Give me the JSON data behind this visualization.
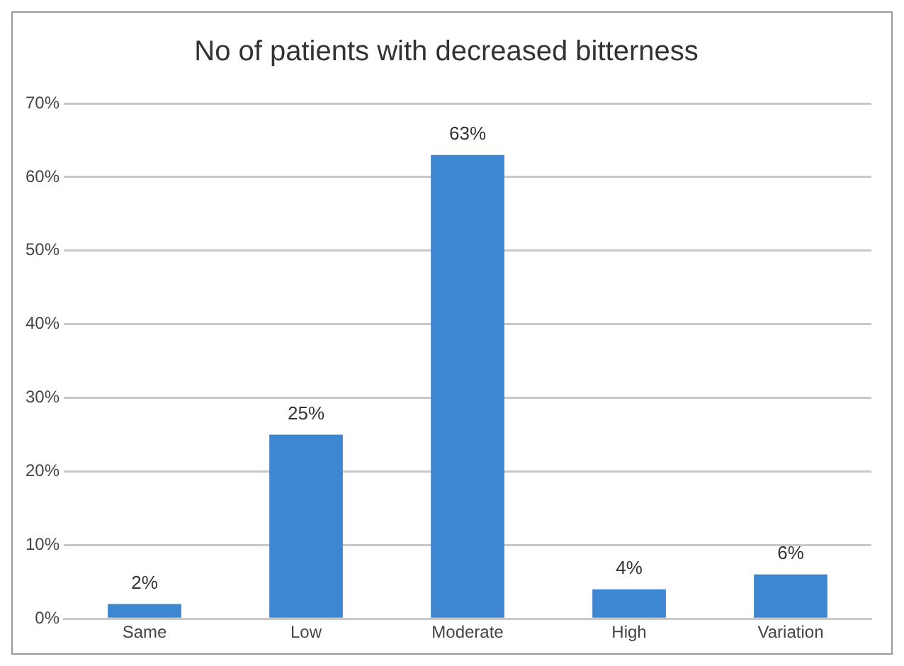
{
  "chart_data": {
    "type": "bar",
    "title": "No of patients with decreased bitterness",
    "categories": [
      "Same",
      "Low",
      "Moderate",
      "High",
      "Variation"
    ],
    "values": [
      2,
      25,
      63,
      4,
      6
    ],
    "value_labels": [
      "2%",
      "25%",
      "63%",
      "4%",
      "6%"
    ],
    "color": "#3f86d0",
    "ylim": [
      0,
      70
    ],
    "yticks": [
      {
        "value": 0,
        "label": "0%"
      },
      {
        "value": 10,
        "label": "10%"
      },
      {
        "value": 20,
        "label": "20%"
      },
      {
        "value": 30,
        "label": "30%"
      },
      {
        "value": 40,
        "label": "40%"
      },
      {
        "value": 50,
        "label": "50%"
      },
      {
        "value": 60,
        "label": "60%"
      },
      {
        "value": 70,
        "label": "70%"
      }
    ],
    "grid": "y",
    "legend": false
  }
}
